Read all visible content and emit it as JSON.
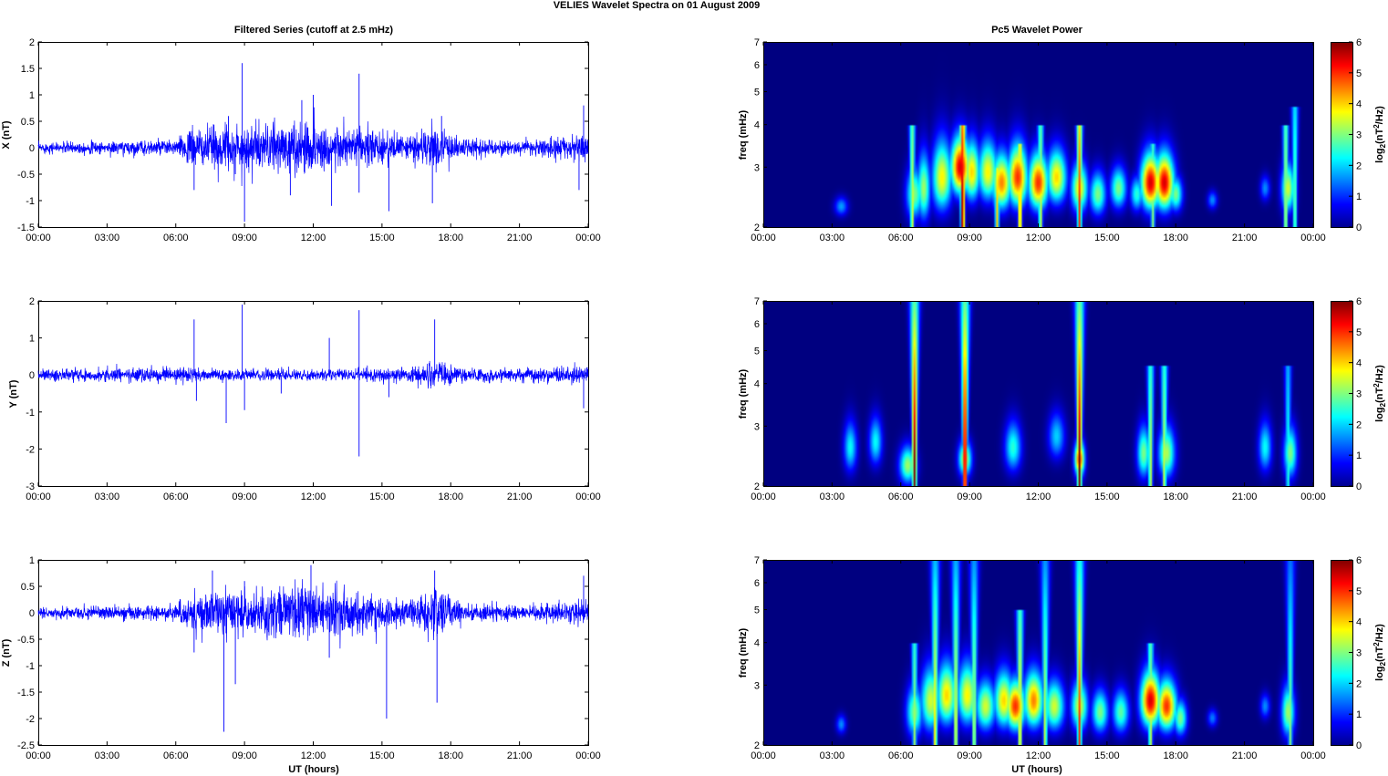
{
  "figure": {
    "title": "VELIES Wavelet Spectra on 01 August    2009",
    "left_title": "Filtered Series (cutoff at 2.5 mHz)",
    "right_title": "Pc5 Wavelet Power",
    "xlabel": "UT (hours)"
  },
  "time_ticks": [
    "00:00",
    "03:00",
    "06:00",
    "09:00",
    "12:00",
    "15:00",
    "18:00",
    "21:00",
    "00:00"
  ],
  "chart_data": [
    {
      "type": "line",
      "ylabel": "X (nT)",
      "xlim_hours": [
        0,
        24
      ],
      "ylim": [
        -1.5,
        2
      ],
      "yticks": [
        -1.5,
        -1,
        -0.5,
        0,
        0.5,
        1,
        1.5,
        2
      ],
      "series_color": "#0000ff",
      "noise_envelope": [
        [
          0,
          0.08
        ],
        [
          3,
          0.1
        ],
        [
          6,
          0.12
        ],
        [
          6.7,
          0.3
        ],
        [
          9,
          0.35
        ],
        [
          12,
          0.4
        ],
        [
          14,
          0.3
        ],
        [
          16,
          0.2
        ],
        [
          17.5,
          0.35
        ],
        [
          18.5,
          0.15
        ],
        [
          21,
          0.1
        ],
        [
          23.5,
          0.2
        ],
        [
          24,
          0.2
        ]
      ],
      "spikes": [
        [
          6.8,
          -0.8
        ],
        [
          8.3,
          0.6
        ],
        [
          8.6,
          -0.5
        ],
        [
          8.9,
          1.6
        ],
        [
          9.0,
          -1.4
        ],
        [
          11.0,
          -0.9
        ],
        [
          11.5,
          0.9
        ],
        [
          12.0,
          1.0
        ],
        [
          12.8,
          -1.1
        ],
        [
          14.0,
          1.4
        ],
        [
          14.0,
          -0.85
        ],
        [
          15.3,
          -1.2
        ],
        [
          17.2,
          -1.05
        ],
        [
          17.6,
          0.6
        ],
        [
          23.6,
          -0.8
        ],
        [
          23.8,
          0.8
        ]
      ]
    },
    {
      "type": "line",
      "ylabel": "Y (nT)",
      "xlim_hours": [
        0,
        24
      ],
      "ylim": [
        -3,
        2
      ],
      "yticks": [
        -3,
        -2,
        -1,
        0,
        1,
        2
      ],
      "series_color": "#0000ff",
      "noise_envelope": [
        [
          0,
          0.12
        ],
        [
          3,
          0.15
        ],
        [
          6,
          0.15
        ],
        [
          9,
          0.12
        ],
        [
          12,
          0.1
        ],
        [
          14,
          0.15
        ],
        [
          16,
          0.15
        ],
        [
          17.5,
          0.3
        ],
        [
          18.5,
          0.15
        ],
        [
          21,
          0.15
        ],
        [
          24,
          0.2
        ]
      ],
      "spikes": [
        [
          6.8,
          1.5
        ],
        [
          6.9,
          -0.7
        ],
        [
          8.2,
          -1.3
        ],
        [
          8.9,
          1.9
        ],
        [
          9.0,
          -0.95
        ],
        [
          10.6,
          -0.5
        ],
        [
          12.7,
          1.0
        ],
        [
          14.0,
          1.75
        ],
        [
          14.0,
          -2.2
        ],
        [
          15.3,
          -0.6
        ],
        [
          17.3,
          1.5
        ],
        [
          23.8,
          -0.9
        ]
      ]
    },
    {
      "type": "line",
      "ylabel": "Z (nT)",
      "xlim_hours": [
        0,
        24
      ],
      "ylim": [
        -2.5,
        1
      ],
      "yticks": [
        -2.5,
        -2,
        -1.5,
        -1,
        -0.5,
        0,
        0.5,
        1
      ],
      "series_color": "#0000ff",
      "noise_envelope": [
        [
          0,
          0.08
        ],
        [
          3,
          0.1
        ],
        [
          6,
          0.12
        ],
        [
          6.7,
          0.3
        ],
        [
          9,
          0.35
        ],
        [
          12,
          0.4
        ],
        [
          14,
          0.3
        ],
        [
          16,
          0.2
        ],
        [
          17.5,
          0.4
        ],
        [
          18.5,
          0.15
        ],
        [
          21,
          0.1
        ],
        [
          24,
          0.2
        ]
      ],
      "spikes": [
        [
          6.8,
          -0.75
        ],
        [
          7.6,
          0.8
        ],
        [
          8.1,
          -2.25
        ],
        [
          8.6,
          -1.35
        ],
        [
          9.0,
          0.6
        ],
        [
          11.9,
          0.9
        ],
        [
          12.7,
          -0.85
        ],
        [
          15.2,
          -2.0
        ],
        [
          17.3,
          0.8
        ],
        [
          17.4,
          -1.7
        ],
        [
          23.8,
          0.7
        ]
      ]
    },
    {
      "type": "heatmap",
      "ylabel": "freq (mHz)",
      "ylim_mhz": [
        2,
        7
      ],
      "yscale": "log",
      "yticks": [
        2,
        3,
        4,
        5,
        6,
        7
      ],
      "colorbar_label": "log2(nT2/Hz)",
      "colorbar_ticks": [
        0,
        1,
        2,
        3,
        4,
        5,
        6
      ],
      "blobs": [
        [
          3.4,
          2.3,
          0.2,
          0.1,
          1.7
        ],
        [
          6.6,
          2.5,
          0.25,
          0.3,
          3.0
        ],
        [
          7.0,
          2.6,
          0.2,
          0.4,
          3.2
        ],
        [
          7.8,
          2.8,
          0.3,
          0.45,
          3.8
        ],
        [
          8.6,
          3.0,
          0.3,
          0.4,
          5.5
        ],
        [
          9.1,
          2.9,
          0.25,
          0.4,
          4.0
        ],
        [
          9.8,
          2.9,
          0.3,
          0.4,
          3.8
        ],
        [
          10.4,
          2.7,
          0.3,
          0.35,
          4.5
        ],
        [
          11.1,
          2.8,
          0.3,
          0.4,
          5.0
        ],
        [
          12.0,
          2.7,
          0.3,
          0.35,
          5.0
        ],
        [
          12.8,
          2.8,
          0.3,
          0.35,
          4.0
        ],
        [
          13.8,
          2.6,
          0.25,
          0.3,
          3.8
        ],
        [
          14.6,
          2.5,
          0.25,
          0.25,
          3.0
        ],
        [
          15.5,
          2.6,
          0.25,
          0.25,
          3.0
        ],
        [
          16.3,
          2.5,
          0.2,
          0.2,
          2.5
        ],
        [
          16.9,
          2.7,
          0.3,
          0.35,
          5.5
        ],
        [
          17.5,
          2.7,
          0.3,
          0.35,
          5.5
        ],
        [
          18.0,
          2.5,
          0.2,
          0.2,
          3.0
        ],
        [
          19.6,
          2.4,
          0.15,
          0.1,
          1.6
        ],
        [
          21.9,
          2.6,
          0.15,
          0.15,
          1.6
        ],
        [
          22.9,
          2.6,
          0.2,
          0.3,
          3.5
        ]
      ],
      "streaks": [
        [
          6.5,
          4.0,
          3.6
        ],
        [
          8.7,
          4.0,
          6.0
        ],
        [
          10.2,
          3.0,
          4.0
        ],
        [
          11.2,
          3.5,
          4.5
        ],
        [
          12.1,
          4.0,
          3.5
        ],
        [
          13.8,
          4.0,
          5.0
        ],
        [
          17.0,
          3.5,
          3.0
        ],
        [
          22.8,
          4.0,
          3.5
        ],
        [
          23.2,
          4.5,
          3.0
        ]
      ]
    },
    {
      "type": "heatmap",
      "ylabel": "freq (mHz)",
      "ylim_mhz": [
        2,
        7
      ],
      "yscale": "log",
      "yticks": [
        2,
        3,
        4,
        5,
        6,
        7
      ],
      "colorbar_label": "log2(nT2/Hz)",
      "colorbar_ticks": [
        0,
        1,
        2,
        3,
        4,
        5,
        6
      ],
      "blobs": [
        [
          3.8,
          2.6,
          0.2,
          0.3,
          2.3
        ],
        [
          4.9,
          2.7,
          0.2,
          0.3,
          2.3
        ],
        [
          6.3,
          2.3,
          0.25,
          0.2,
          3.2
        ],
        [
          8.8,
          2.4,
          0.2,
          0.2,
          3.5
        ],
        [
          10.9,
          2.6,
          0.25,
          0.3,
          2.5
        ],
        [
          12.8,
          2.8,
          0.25,
          0.3,
          2.0
        ],
        [
          13.8,
          2.4,
          0.15,
          0.2,
          5.0
        ],
        [
          16.6,
          2.5,
          0.2,
          0.3,
          3.0
        ],
        [
          17.6,
          2.5,
          0.25,
          0.3,
          3.3
        ],
        [
          21.9,
          2.6,
          0.2,
          0.3,
          2.3
        ],
        [
          23.0,
          2.5,
          0.2,
          0.3,
          3.0
        ]
      ],
      "streaks": [
        [
          6.6,
          7.0,
          6.0
        ],
        [
          8.8,
          7.0,
          6.0
        ],
        [
          13.8,
          7.0,
          6.0
        ],
        [
          16.9,
          4.5,
          3.5
        ],
        [
          17.5,
          4.5,
          3.5
        ],
        [
          22.9,
          4.5,
          2.5
        ]
      ]
    },
    {
      "type": "heatmap",
      "ylabel": "freq (mHz)",
      "ylim_mhz": [
        2,
        7
      ],
      "yscale": "log",
      "yticks": [
        2,
        3,
        4,
        5,
        6,
        7
      ],
      "colorbar_label": "log2(nT2/Hz)",
      "colorbar_ticks": [
        0,
        1,
        2,
        3,
        4,
        5,
        6
      ],
      "blobs": [
        [
          3.4,
          2.3,
          0.15,
          0.1,
          1.6
        ],
        [
          6.6,
          2.5,
          0.25,
          0.3,
          3.0
        ],
        [
          7.3,
          2.7,
          0.3,
          0.4,
          3.5
        ],
        [
          8.0,
          2.8,
          0.3,
          0.4,
          4.0
        ],
        [
          8.9,
          2.8,
          0.3,
          0.4,
          3.8
        ],
        [
          9.7,
          2.6,
          0.3,
          0.3,
          3.5
        ],
        [
          10.5,
          2.7,
          0.3,
          0.35,
          4.0
        ],
        [
          11.0,
          2.6,
          0.3,
          0.3,
          5.0
        ],
        [
          11.8,
          2.7,
          0.3,
          0.35,
          4.5
        ],
        [
          12.7,
          2.6,
          0.3,
          0.3,
          3.5
        ],
        [
          13.8,
          2.6,
          0.25,
          0.3,
          3.5
        ],
        [
          14.7,
          2.5,
          0.25,
          0.25,
          3.0
        ],
        [
          15.6,
          2.5,
          0.25,
          0.25,
          2.8
        ],
        [
          16.9,
          2.7,
          0.3,
          0.35,
          5.5
        ],
        [
          17.6,
          2.6,
          0.3,
          0.3,
          5.0
        ],
        [
          18.2,
          2.4,
          0.2,
          0.2,
          3.0
        ],
        [
          19.6,
          2.4,
          0.15,
          0.1,
          1.5
        ],
        [
          21.9,
          2.6,
          0.15,
          0.15,
          1.6
        ],
        [
          22.9,
          2.5,
          0.2,
          0.3,
          3.2
        ]
      ],
      "streaks": [
        [
          6.6,
          4.0,
          3.2
        ],
        [
          7.5,
          7.0,
          4.0
        ],
        [
          8.4,
          7.0,
          3.8
        ],
        [
          9.2,
          7.0,
          3.5
        ],
        [
          11.2,
          5.0,
          4.0
        ],
        [
          12.3,
          7.0,
          3.5
        ],
        [
          13.8,
          7.0,
          5.0
        ],
        [
          16.9,
          4.0,
          3.5
        ],
        [
          23.0,
          7.0,
          3.0
        ]
      ]
    }
  ]
}
